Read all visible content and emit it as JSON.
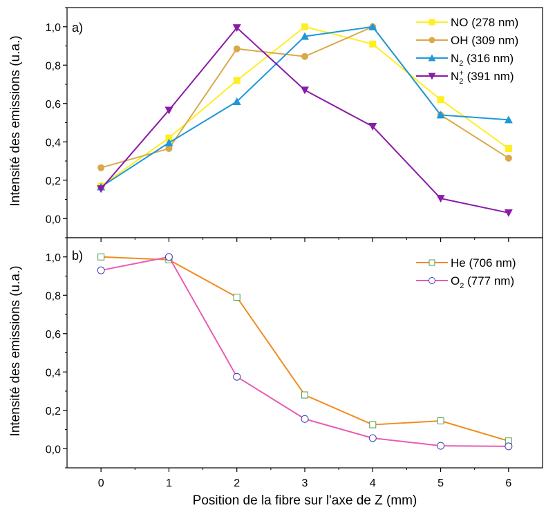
{
  "chart_data": [
    {
      "panel_label": "a)",
      "type": "line",
      "x": [
        0,
        1,
        2,
        3,
        4,
        5,
        6
      ],
      "x_tick_labels": [
        "0",
        "1",
        "2",
        "3",
        "4",
        "5",
        "6"
      ],
      "xlim": [
        -0.5,
        6.5
      ],
      "ylim": [
        -0.1,
        1.1
      ],
      "y_ticks": [
        0.0,
        0.2,
        0.4,
        0.6,
        0.8,
        1.0
      ],
      "y_tick_labels": [
        "0,0",
        "0,2",
        "0,4",
        "0,6",
        "0,8",
        "1,0"
      ],
      "ylabel": "Intensité des emissions (u.a.)",
      "legend_position": "top-right",
      "series": [
        {
          "name": "NO (278 nm)",
          "label_main": "NO (278 nm)",
          "color": "#ffee22",
          "marker": "square",
          "values": [
            0.17,
            0.42,
            0.72,
            1.0,
            0.91,
            0.62,
            0.365
          ]
        },
        {
          "name": "OH (309 nm)",
          "label_main": "OH (309 nm)",
          "color": "#dba849",
          "marker": "circle",
          "values": [
            0.265,
            0.365,
            0.885,
            0.845,
            1.0,
            0.54,
            0.315
          ]
        },
        {
          "name": "N2 (316 nm)",
          "label_main": "N",
          "label_sub": "2",
          "label_rest": " (316 nm)",
          "color": "#1e98d8",
          "marker": "triangle-up",
          "values": [
            0.165,
            0.395,
            0.61,
            0.95,
            1.0,
            0.54,
            0.515
          ]
        },
        {
          "name": "N2+ (391 nm)",
          "label_main": "N",
          "label_sub": "2",
          "label_sup": "+",
          "label_rest": " (391 nm)",
          "color": "#8a1aa8",
          "marker": "triangle-down",
          "values": [
            0.155,
            0.565,
            0.995,
            0.67,
            0.48,
            0.105,
            0.03
          ]
        }
      ]
    },
    {
      "panel_label": "b)",
      "type": "line",
      "x": [
        0,
        1,
        2,
        3,
        4,
        5,
        6
      ],
      "x_tick_labels": [
        "0",
        "1",
        "2",
        "3",
        "4",
        "5",
        "6"
      ],
      "xlim": [
        -0.5,
        6.5
      ],
      "ylim": [
        -0.1,
        1.1
      ],
      "y_ticks": [
        0.0,
        0.2,
        0.4,
        0.6,
        0.8,
        1.0
      ],
      "y_tick_labels": [
        "0,0",
        "0,2",
        "0,4",
        "0,6",
        "0,8",
        "1,0"
      ],
      "xlabel": "Position de la fibre sur l'axe de Z (mm)",
      "ylabel": "Intensité des emissions (u.a.)",
      "legend_position": "top-right",
      "series": [
        {
          "name": "He (706 nm)",
          "label_main": "He (706 nm)",
          "color": "#f08c1e",
          "marker": "square-open",
          "marker_edge": "#4f9a4f",
          "values": [
            1.0,
            0.985,
            0.79,
            0.28,
            0.125,
            0.145,
            0.04
          ]
        },
        {
          "name": "O2 (777 nm)",
          "label_main": "O",
          "label_sub": "2",
          "label_rest": " (777 nm)",
          "color": "#ea5bb4",
          "marker": "circle-open",
          "marker_edge": "#3c3cb4",
          "values": [
            0.93,
            1.0,
            0.375,
            0.155,
            0.055,
            0.015,
            0.012
          ]
        }
      ]
    }
  ]
}
